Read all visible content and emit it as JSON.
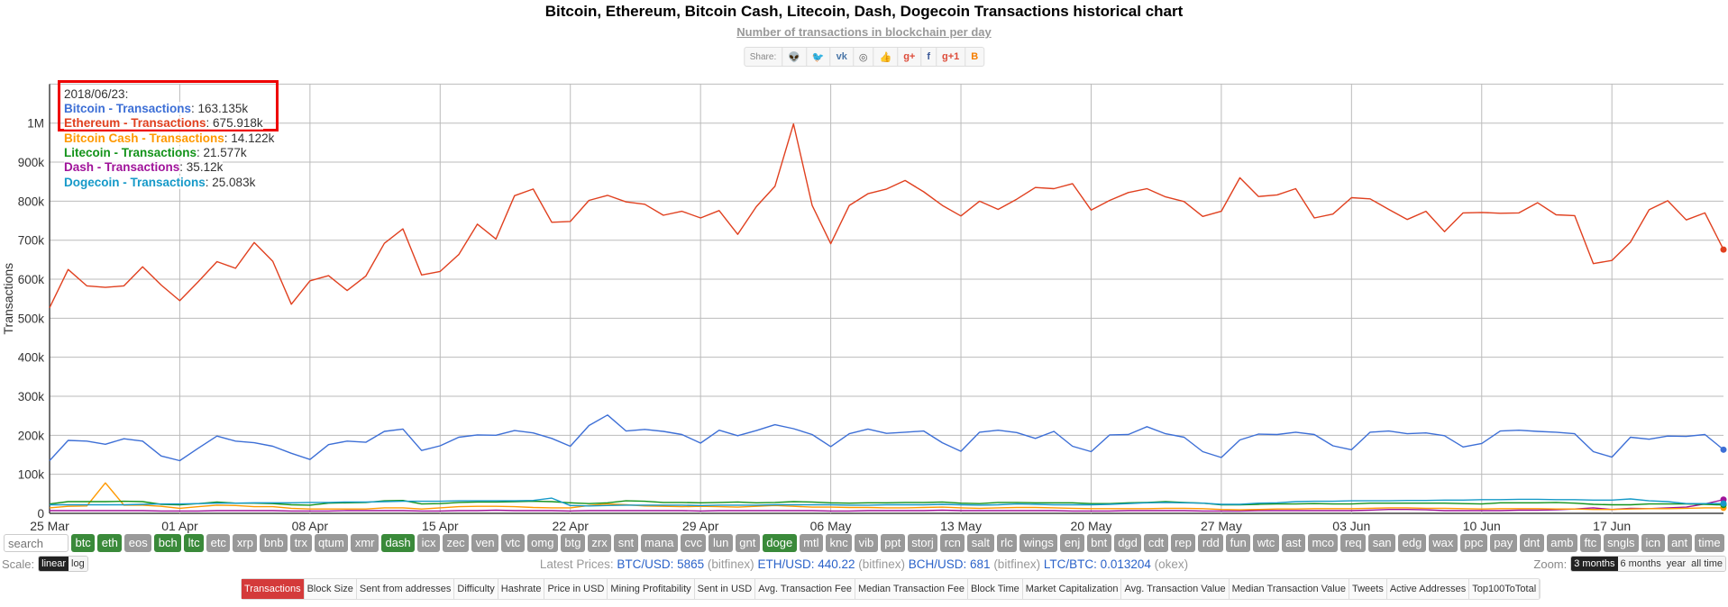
{
  "header": {
    "title": "Bitcoin, Ethereum, Bitcoin Cash, Litecoin, Dash, Dogecoin Transactions historical chart",
    "subtitle": "Number of transactions in blockchain per day",
    "share_label": "Share:",
    "share_icons": [
      "reddit-icon",
      "twitter-icon",
      "vk-icon",
      "weibo-icon",
      "like-icon",
      "google-plus-icon",
      "facebook-icon",
      "google-plus-one-icon",
      "blogger-icon"
    ]
  },
  "tooltip": {
    "date": "2018/06/23:",
    "rows": [
      {
        "label": "Bitcoin - Transactions",
        "value": ": 163.135k",
        "color": "#3d6fd6"
      },
      {
        "label": "Ethereum - Transactions",
        "value": ": 675.918k",
        "color": "#e0401f"
      },
      {
        "label": "Bitcoin Cash - Transactions",
        "value": ": 14.122k",
        "color": "#ff9900"
      },
      {
        "label": "Litecoin - Transactions",
        "value": ": 21.577k",
        "color": "#13931a"
      },
      {
        "label": "Dash - Transactions",
        "value": ": 35.12k",
        "color": "#a0139a"
      },
      {
        "label": "Dogecoin - Transactions",
        "value": ": 25.083k",
        "color": "#1599c8"
      }
    ],
    "highlight_color": "#ee0000"
  },
  "chart_data": {
    "type": "line",
    "title": "Bitcoin, Ethereum, Bitcoin Cash, Litecoin, Dash, Dogecoin Transactions historical chart",
    "ylabel": "Transactions",
    "xlabel": "",
    "x_range": [
      "2018/03/25",
      "2018/06/23"
    ],
    "x_interval": "daily",
    "x_ticks": [
      "25 Mar",
      "01 Apr",
      "08 Apr",
      "15 Apr",
      "22 Apr",
      "29 Apr",
      "06 May",
      "13 May",
      "20 May",
      "27 May",
      "03 Jun",
      "10 Jun",
      "17 Jun"
    ],
    "y_ticks": [
      "0",
      "100k",
      "200k",
      "300k",
      "400k",
      "500k",
      "600k",
      "700k",
      "800k",
      "900k",
      "1M"
    ],
    "ylim": [
      0,
      1100000
    ],
    "grid": true,
    "series": [
      {
        "name": "Ethereum - Transactions",
        "color": "#e0401f",
        "values": [
          527,
          625,
          583,
          579,
          583,
          632,
          585,
          545,
          594,
          645,
          628,
          694,
          646,
          536,
          596,
          609,
          571,
          608,
          692,
          729,
          611,
          620,
          663,
          741,
          703,
          814,
          831,
          746,
          748,
          802,
          815,
          798,
          792,
          764,
          774,
          757,
          776,
          715,
          786,
          838,
          998,
          789,
          691,
          789,
          819,
          831,
          853,
          824,
          789,
          762,
          800,
          779,
          805,
          835,
          832,
          845,
          777,
          802,
          822,
          832,
          811,
          799,
          761,
          774,
          860,
          812,
          816,
          832,
          757,
          767,
          809,
          806,
          779,
          753,
          774,
          722,
          770,
          771,
          769,
          770,
          796,
          765,
          763,
          640,
          648,
          695,
          778,
          801,
          752,
          770,
          675.918
        ]
      },
      {
        "name": "Bitcoin - Transactions",
        "color": "#3d6fd6",
        "values": [
          135,
          187,
          185,
          177,
          191,
          185,
          147,
          135,
          167,
          198,
          185,
          181,
          172,
          154,
          138,
          176,
          185,
          182,
          210,
          216,
          161,
          173,
          195,
          201,
          200,
          212,
          206,
          192,
          172,
          225,
          252,
          211,
          215,
          210,
          202,
          180,
          213,
          199,
          212,
          227,
          217,
          202,
          171,
          204,
          216,
          205,
          208,
          211,
          181,
          159,
          208,
          213,
          207,
          192,
          210,
          172,
          158,
          201,
          202,
          222,
          204,
          195,
          158,
          143,
          188,
          203,
          202,
          208,
          202,
          173,
          163,
          208,
          211,
          204,
          206,
          199,
          170,
          179,
          211,
          213,
          210,
          208,
          204,
          158,
          144,
          195,
          190,
          198,
          197,
          202,
          163.135
        ]
      },
      {
        "name": "Bitcoin Cash - Transactions",
        "color": "#ff9900",
        "values": [
          14,
          18,
          19,
          78,
          21,
          21,
          18,
          13,
          17,
          21,
          20,
          17,
          17,
          13,
          11,
          11,
          11,
          11,
          14,
          14,
          11,
          14,
          17,
          18,
          18,
          17,
          15,
          14,
          14,
          20,
          24,
          22,
          19,
          18,
          17,
          18,
          17,
          16,
          18,
          20,
          18,
          16,
          16,
          15,
          15,
          14,
          14,
          15,
          16,
          14,
          13,
          14,
          15,
          15,
          14,
          13,
          12,
          12,
          12,
          12,
          13,
          13,
          12,
          10,
          9,
          10,
          11,
          11,
          12,
          12,
          12,
          13,
          14,
          14,
          13,
          13,
          12,
          11,
          12,
          12,
          12,
          11,
          11,
          10,
          10,
          11,
          12,
          12,
          13,
          14,
          14.122
        ]
      },
      {
        "name": "Litecoin - Transactions",
        "color": "#13931a",
        "values": [
          24,
          30,
          30,
          30,
          31,
          30,
          23,
          22,
          25,
          29,
          26,
          26,
          25,
          22,
          21,
          26,
          27,
          28,
          32,
          33,
          24,
          25,
          28,
          29,
          29,
          30,
          31,
          30,
          27,
          25,
          27,
          32,
          31,
          28,
          28,
          27,
          28,
          29,
          27,
          28,
          30,
          29,
          27,
          26,
          27,
          27,
          28,
          28,
          29,
          26,
          25,
          28,
          28,
          27,
          27,
          27,
          25,
          25,
          27,
          28,
          30,
          28,
          26,
          22,
          22,
          23,
          24,
          24,
          25,
          24,
          24,
          26,
          26,
          26,
          26,
          26,
          25,
          24,
          27,
          27,
          27,
          28,
          26,
          23,
          22,
          22,
          24,
          24,
          24,
          23,
          21.577
        ]
      },
      {
        "name": "Dash - Transactions",
        "color": "#a0139a",
        "values": [
          7,
          7,
          7,
          7,
          7,
          7,
          6,
          6,
          6,
          7,
          7,
          7,
          7,
          6,
          6,
          6,
          7,
          7,
          7,
          7,
          6,
          6,
          7,
          7,
          8,
          7,
          7,
          7,
          6,
          7,
          7,
          7,
          7,
          7,
          7,
          6,
          7,
          7,
          7,
          7,
          7,
          7,
          6,
          6,
          7,
          7,
          7,
          7,
          8,
          7,
          7,
          7,
          7,
          7,
          7,
          6,
          6,
          6,
          7,
          7,
          7,
          7,
          6,
          6,
          6,
          7,
          7,
          7,
          7,
          7,
          7,
          8,
          10,
          10,
          9,
          7,
          7,
          7,
          7,
          8,
          8,
          9,
          11,
          14,
          10,
          13,
          12,
          14,
          16,
          24,
          35.12
        ]
      },
      {
        "name": "Dogecoin - Transactions",
        "color": "#1599c8",
        "values": [
          22,
          22,
          22,
          22,
          22,
          23,
          24,
          24,
          25,
          26,
          26,
          27,
          27,
          27,
          28,
          28,
          29,
          29,
          30,
          31,
          31,
          31,
          32,
          32,
          32,
          32,
          33,
          39,
          20,
          19,
          20,
          21,
          21,
          21,
          21,
          20,
          21,
          21,
          21,
          22,
          22,
          22,
          22,
          21,
          21,
          22,
          22,
          22,
          23,
          22,
          21,
          22,
          24,
          23,
          22,
          22,
          22,
          23,
          25,
          27,
          28,
          27,
          26,
          23,
          23,
          26,
          27,
          30,
          31,
          31,
          32,
          32,
          32,
          33,
          33,
          34,
          34,
          35,
          35,
          36,
          36,
          35,
          35,
          34,
          34,
          37,
          32,
          30,
          25,
          25,
          25.083
        ]
      }
    ],
    "value_unit": "thousand transactions"
  },
  "controls": {
    "search_placeholder": "search",
    "coins": [
      {
        "label": "btc",
        "on": true
      },
      {
        "label": "eth",
        "on": true
      },
      {
        "label": "eos",
        "on": false
      },
      {
        "label": "bch",
        "on": true
      },
      {
        "label": "ltc",
        "on": true
      },
      {
        "label": "etc",
        "on": false
      },
      {
        "label": "xrp",
        "on": false
      },
      {
        "label": "bnb",
        "on": false
      },
      {
        "label": "trx",
        "on": false
      },
      {
        "label": "qtum",
        "on": false
      },
      {
        "label": "xmr",
        "on": false
      },
      {
        "label": "dash",
        "on": true
      },
      {
        "label": "icx",
        "on": false
      },
      {
        "label": "zec",
        "on": false
      },
      {
        "label": "ven",
        "on": false
      },
      {
        "label": "vtc",
        "on": false
      },
      {
        "label": "omg",
        "on": false
      },
      {
        "label": "btg",
        "on": false
      },
      {
        "label": "zrx",
        "on": false
      },
      {
        "label": "snt",
        "on": false
      },
      {
        "label": "mana",
        "on": false
      },
      {
        "label": "cvc",
        "on": false
      },
      {
        "label": "lun",
        "on": false
      },
      {
        "label": "gnt",
        "on": false
      },
      {
        "label": "doge",
        "on": true
      },
      {
        "label": "mtl",
        "on": false
      },
      {
        "label": "knc",
        "on": false
      },
      {
        "label": "vib",
        "on": false
      },
      {
        "label": "ppt",
        "on": false
      },
      {
        "label": "storj",
        "on": false
      },
      {
        "label": "rcn",
        "on": false
      },
      {
        "label": "salt",
        "on": false
      },
      {
        "label": "rlc",
        "on": false
      },
      {
        "label": "wings",
        "on": false
      },
      {
        "label": "enj",
        "on": false
      },
      {
        "label": "bnt",
        "on": false
      },
      {
        "label": "dgd",
        "on": false
      },
      {
        "label": "cdt",
        "on": false
      },
      {
        "label": "rep",
        "on": false
      },
      {
        "label": "rdd",
        "on": false
      },
      {
        "label": "fun",
        "on": false
      },
      {
        "label": "wtc",
        "on": false
      },
      {
        "label": "ast",
        "on": false
      },
      {
        "label": "mco",
        "on": false
      },
      {
        "label": "req",
        "on": false
      },
      {
        "label": "san",
        "on": false
      },
      {
        "label": "edg",
        "on": false
      },
      {
        "label": "wax",
        "on": false
      },
      {
        "label": "ppc",
        "on": false
      },
      {
        "label": "pay",
        "on": false
      },
      {
        "label": "dnt",
        "on": false
      },
      {
        "label": "amb",
        "on": false
      },
      {
        "label": "ftc",
        "on": false
      },
      {
        "label": "sngls",
        "on": false
      },
      {
        "label": "icn",
        "on": false
      },
      {
        "label": "ant",
        "on": false
      },
      {
        "label": "time",
        "on": false
      }
    ],
    "scale_label": "Scale:",
    "scale_options": [
      "linear",
      "log"
    ],
    "scale_selected": "linear",
    "zoom_label": "Zoom:",
    "zoom_options": [
      "3 months",
      "6 months",
      "year",
      "all time"
    ],
    "zoom_selected": "3 months"
  },
  "prices": {
    "label": "Latest Prices: ",
    "items": [
      {
        "pair": "BTC/USD: 5865",
        "source": " (bitfinex) "
      },
      {
        "pair": "ETH/USD: 440.22",
        "source": " (bitfinex) "
      },
      {
        "pair": "BCH/USD: 681",
        "source": " (bitfinex) "
      },
      {
        "pair": "LTC/BTC: 0.013204",
        "source": " (okex)"
      }
    ]
  },
  "tabs": {
    "items": [
      "Transactions",
      "Block Size",
      "Sent from addresses",
      "Difficulty",
      "Hashrate",
      "Price in USD",
      "Mining Profitability",
      "Sent in USD",
      "Avg. Transaction Fee",
      "Median Transaction Fee",
      "Block Time",
      "Market Capitalization",
      "Avg. Transaction Value",
      "Median Transaction Value",
      "Tweets",
      "Active Addresses",
      "Top100ToTotal"
    ],
    "active": "Transactions",
    "active_color": "#d43a3a"
  }
}
